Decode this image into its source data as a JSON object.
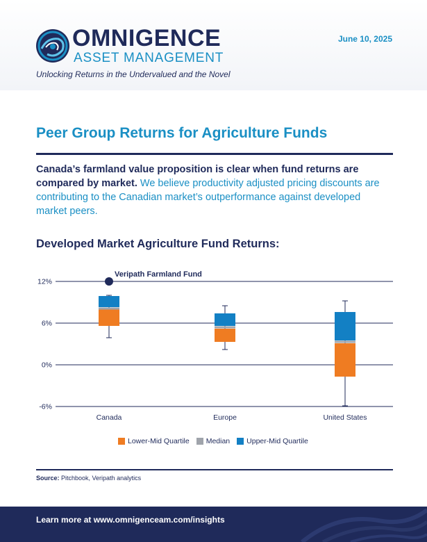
{
  "header": {
    "brand_name": "OMNIGENCE",
    "brand_sub": "ASSET MANAGEMENT",
    "tagline": "Unlocking Returns in the Undervalued and the Novel",
    "date": "June 10, 2025"
  },
  "page": {
    "title": "Peer Group Returns for Agriculture Funds",
    "intro_strong": "Canada’s farmland value proposition is clear when fund returns are compared by market.",
    "intro_rest": " We believe productivity adjusted pricing discounts are contributing to the Canadian market’s outperformance against developed market peers.",
    "chart_title": "Developed Market Agriculture Fund Returns:"
  },
  "colors": {
    "navy": "#1f2a5a",
    "blue": "#1a8fc4",
    "lower_mid": "#ef7c22",
    "median": "#a0a4ab",
    "upper_mid": "#1380c4"
  },
  "chart_data": {
    "type": "box",
    "categories": [
      "Canada",
      "Europe",
      "United States"
    ],
    "yticks": [
      "12%",
      "6%",
      "0%",
      "-6%"
    ],
    "ytick_values": [
      12,
      6,
      0,
      -6
    ],
    "ylim": [
      -6,
      12
    ],
    "series": [
      {
        "name": "Lower-Mid Quartile",
        "values": [
          [
            5.6,
            8.0
          ],
          [
            3.3,
            5.2
          ],
          [
            -1.7,
            3.1
          ]
        ]
      },
      {
        "name": "Median",
        "values": [
          8.1,
          5.4,
          3.3
        ]
      },
      {
        "name": "Upper-Mid Quartile",
        "values": [
          [
            8.3,
            9.9
          ],
          [
            5.6,
            7.4
          ],
          [
            3.5,
            7.6
          ]
        ]
      }
    ],
    "whiskers": [
      [
        3.9,
        10.0
      ],
      [
        2.2,
        8.5
      ],
      [
        -5.9,
        9.2
      ]
    ],
    "annotation": {
      "label": "Veripath Farmland Fund",
      "category": "Canada",
      "value": 12.0
    },
    "legend": [
      "Lower-Mid Quartile",
      "Median",
      "Upper-Mid Quartile"
    ],
    "grid": true,
    "legend_position": "bottom"
  },
  "source": {
    "label": "Source:",
    "text": " Pitchbook, Veripath analytics"
  },
  "footer": {
    "text": "Learn more at www.omnigenceam.com/insights"
  }
}
